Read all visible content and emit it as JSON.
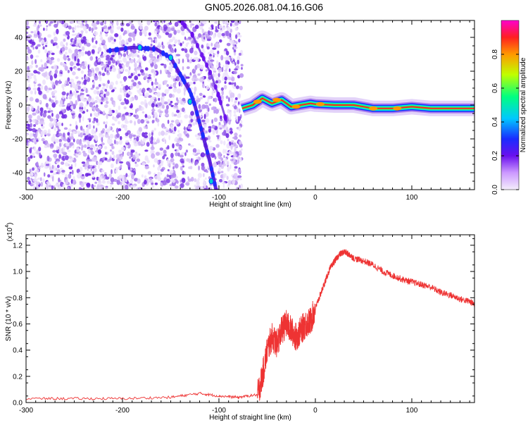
{
  "title": "GN05.2026.081.04.16.G06",
  "chart_data": [
    {
      "type": "heatmap",
      "title": "GN05.2026.081.04.16.G06",
      "xlabel": "Height of straight line (km)",
      "ylabel": "Frequency (Hz)",
      "xlim": [
        -300,
        165
      ],
      "ylim": [
        -50,
        50
      ],
      "xticks": [
        -300,
        -200,
        -100,
        0,
        100
      ],
      "yticks": [
        -40,
        -20,
        0,
        20,
        40
      ],
      "colorbar": {
        "label": "Normalized spectral amplitude",
        "range": [
          0,
          1
        ],
        "ticks": [
          "0.0",
          "0.2",
          "0.4",
          "0.6",
          "0.8"
        ]
      },
      "noise_region_x": [
        -300,
        -76
      ],
      "traces": [
        {
          "name": "descending streak",
          "x": [
            -215,
            -190,
            -165,
            -150,
            -140,
            -130,
            -125,
            -118,
            -110,
            -103
          ],
          "y": [
            32,
            34,
            33,
            28,
            18,
            8,
            0,
            -15,
            -32,
            -50
          ]
        },
        {
          "name": "faint streak",
          "x": [
            -140,
            -128,
            -118,
            -108,
            -100,
            -92
          ],
          "y": [
            50,
            42,
            30,
            18,
            5,
            -10
          ]
        },
        {
          "name": "carrier line",
          "x": [
            -76,
            -65,
            -55,
            -45,
            -35,
            -25,
            -15,
            -5,
            0,
            20,
            40,
            60,
            80,
            100,
            120,
            140,
            165
          ],
          "y": [
            -2,
            0,
            4,
            1,
            3,
            -1,
            0,
            1,
            0.5,
            0,
            0,
            -2,
            -2,
            -1,
            -2,
            -2,
            -2
          ]
        }
      ]
    },
    {
      "type": "line",
      "xlabel": "Height of straight line (km)",
      "ylabel": "SNR (10 * v/v)",
      "scale_label": "(x10",
      "scale_exp": "4",
      "xlim": [
        -300,
        165
      ],
      "ylim": [
        0,
        1.28
      ],
      "xticks": [
        -300,
        -200,
        -100,
        0,
        100
      ],
      "yticks": [
        0.0,
        0.2,
        0.4,
        0.6,
        0.8,
        1.0,
        1.2
      ],
      "ytick_labels": [
        "0.0",
        "0.2",
        "0.4",
        "0.6",
        "0.8",
        "1.0",
        "1.2"
      ],
      "series": [
        {
          "name": "SNR",
          "color": "#ee3333",
          "x": [
            -300,
            -250,
            -200,
            -150,
            -120,
            -100,
            -80,
            -60,
            -55,
            -50,
            -45,
            -40,
            -35,
            -30,
            -25,
            -20,
            -15,
            -10,
            -5,
            0,
            5,
            10,
            15,
            20,
            25,
            30,
            35,
            40,
            50,
            60,
            70,
            80,
            90,
            100,
            110,
            120,
            130,
            140,
            150,
            160,
            165
          ],
          "y": [
            0.03,
            0.03,
            0.03,
            0.04,
            0.07,
            0.05,
            0.04,
            0.06,
            0.2,
            0.4,
            0.5,
            0.45,
            0.55,
            0.6,
            0.55,
            0.5,
            0.55,
            0.6,
            0.62,
            0.72,
            0.82,
            0.92,
            1.02,
            1.08,
            1.13,
            1.15,
            1.13,
            1.1,
            1.08,
            1.05,
            1.0,
            0.97,
            0.94,
            0.92,
            0.9,
            0.88,
            0.84,
            0.82,
            0.79,
            0.77,
            0.75
          ]
        }
      ]
    }
  ]
}
